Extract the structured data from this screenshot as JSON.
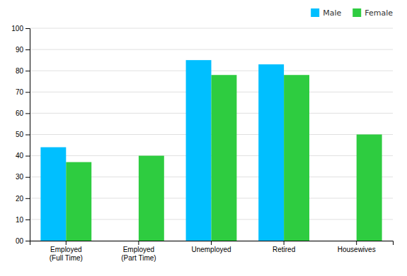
{
  "chart_data": {
    "type": "bar",
    "categories": [
      "Employed\n(Full Time)",
      "Employed\n(Part Time)",
      "Unemployed",
      "Retired",
      "Housewives"
    ],
    "series": [
      {
        "name": "Male",
        "color": "#00BFFF",
        "values": [
          44,
          null,
          85,
          83,
          null
        ]
      },
      {
        "name": "Female",
        "color": "#2ECC40",
        "values": [
          37,
          40,
          78,
          78,
          50
        ]
      }
    ],
    "ylim": [
      0,
      100
    ],
    "yticks": [
      {
        "value": 0,
        "label": "00"
      },
      10,
      20,
      30,
      40,
      50,
      60,
      70,
      80,
      90,
      100
    ],
    "grid": true,
    "legend": "upper right"
  }
}
